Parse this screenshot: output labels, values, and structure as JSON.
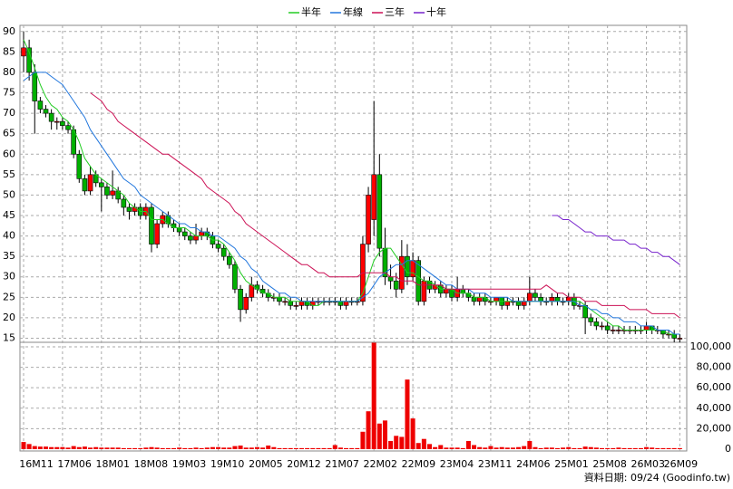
{
  "chart_data": {
    "type": "candlestick",
    "categories": [
      "16M11",
      null,
      null,
      null,
      null,
      null,
      null,
      "17M06",
      null,
      null,
      null,
      null,
      null,
      null,
      "18M01",
      null,
      null,
      null,
      null,
      null,
      null,
      "18M08",
      null,
      null,
      null,
      null,
      null,
      null,
      "19M03",
      null,
      null,
      null,
      null,
      null,
      null,
      "19M10",
      null,
      null,
      null,
      null,
      null,
      null,
      "20M05",
      null,
      null,
      null,
      null,
      null,
      null,
      "20M12",
      null,
      null,
      null,
      null,
      null,
      null,
      "21M07",
      null,
      null,
      null,
      null,
      null,
      null,
      "22M02",
      null,
      null,
      null,
      null,
      null,
      null,
      "22M09",
      null,
      null,
      null,
      null,
      null,
      null,
      "23M04",
      null,
      null,
      null,
      null,
      null,
      null,
      "23M11",
      null,
      null,
      null,
      null,
      null,
      null,
      "24M06",
      null,
      null,
      null,
      null,
      null,
      null,
      "25M01",
      null,
      null,
      null,
      null,
      null,
      null,
      "25M08",
      null,
      null,
      null,
      null,
      null,
      null,
      "26M03",
      null,
      null,
      null,
      null,
      null,
      "26M09"
    ],
    "ohlc": [
      [
        84,
        90,
        80,
        86
      ],
      [
        86,
        88,
        78,
        80
      ],
      [
        80,
        82,
        65,
        73
      ],
      [
        73,
        74,
        70,
        71
      ],
      [
        71,
        72,
        69,
        70
      ],
      [
        70,
        71,
        66,
        68
      ],
      [
        68,
        69,
        66,
        68
      ],
      [
        68,
        69,
        66,
        67
      ],
      [
        67,
        68,
        65,
        66
      ],
      [
        66,
        67,
        59,
        60
      ],
      [
        60,
        61,
        53,
        54
      ],
      [
        54,
        55,
        50,
        51
      ],
      [
        51,
        57,
        50,
        55
      ],
      [
        55,
        56,
        52,
        53
      ],
      [
        53,
        54,
        46,
        52
      ],
      [
        52,
        53,
        49,
        50
      ],
      [
        50,
        56,
        49,
        51
      ],
      [
        51,
        52,
        48,
        49
      ],
      [
        49,
        50,
        45,
        47
      ],
      [
        47,
        48,
        44,
        46
      ],
      [
        46,
        48,
        45,
        47
      ],
      [
        47,
        48,
        44,
        45
      ],
      [
        45,
        48,
        44,
        47
      ],
      [
        47,
        48,
        36,
        38
      ],
      [
        38,
        44,
        37,
        43
      ],
      [
        43,
        46,
        42,
        45
      ],
      [
        45,
        46,
        42,
        43
      ],
      [
        43,
        44,
        41,
        42
      ],
      [
        42,
        43,
        40,
        41
      ],
      [
        41,
        42,
        39,
        40
      ],
      [
        40,
        41,
        38,
        39
      ],
      [
        39,
        43,
        38,
        40
      ],
      [
        40,
        42,
        39,
        41
      ],
      [
        41,
        42,
        39,
        40
      ],
      [
        40,
        41,
        37,
        38
      ],
      [
        38,
        39,
        36,
        37
      ],
      [
        37,
        38,
        34,
        35
      ],
      [
        35,
        36,
        32,
        33
      ],
      [
        33,
        34,
        26,
        27
      ],
      [
        27,
        28,
        19,
        22
      ],
      [
        22,
        26,
        21,
        25
      ],
      [
        25,
        30,
        24,
        28
      ],
      [
        28,
        29,
        26,
        27
      ],
      [
        27,
        28,
        25,
        26
      ],
      [
        26,
        27,
        24,
        25
      ],
      [
        25,
        26,
        24,
        25
      ],
      [
        25,
        26,
        23,
        24
      ],
      [
        24,
        25,
        23,
        24
      ],
      [
        24,
        25,
        22,
        23
      ],
      [
        23,
        24,
        22,
        23
      ],
      [
        23,
        25,
        22,
        24
      ],
      [
        24,
        25,
        22,
        23
      ],
      [
        23,
        25,
        22,
        24
      ],
      [
        24,
        25,
        23,
        24
      ],
      [
        24,
        25,
        23,
        24
      ],
      [
        24,
        25,
        23,
        24
      ],
      [
        24,
        25,
        23,
        24
      ],
      [
        24,
        25,
        22,
        23
      ],
      [
        23,
        25,
        22,
        24
      ],
      [
        24,
        25,
        23,
        24
      ],
      [
        24,
        25,
        23,
        24
      ],
      [
        24,
        40,
        23,
        38
      ],
      [
        38,
        52,
        36,
        50
      ],
      [
        44,
        73,
        40,
        55
      ],
      [
        55,
        60,
        35,
        37
      ],
      [
        37,
        42,
        28,
        30
      ],
      [
        30,
        33,
        27,
        29
      ],
      [
        29,
        31,
        25,
        27
      ],
      [
        27,
        39,
        26,
        35
      ],
      [
        35,
        38,
        28,
        30
      ],
      [
        30,
        36,
        29,
        34
      ],
      [
        34,
        35,
        23,
        24
      ],
      [
        24,
        30,
        23,
        29
      ],
      [
        29,
        30,
        26,
        27
      ],
      [
        27,
        29,
        26,
        28
      ],
      [
        28,
        29,
        25,
        26
      ],
      [
        26,
        28,
        25,
        27
      ],
      [
        27,
        28,
        24,
        25
      ],
      [
        25,
        30,
        24,
        27
      ],
      [
        27,
        28,
        25,
        26
      ],
      [
        26,
        27,
        24,
        25
      ],
      [
        25,
        26,
        23,
        24
      ],
      [
        24,
        26,
        23,
        25
      ],
      [
        25,
        26,
        23,
        24
      ],
      [
        24,
        25,
        23,
        24
      ],
      [
        24,
        25,
        23,
        25
      ],
      [
        25,
        25,
        22,
        23
      ],
      [
        23,
        25,
        22,
        24
      ],
      [
        24,
        25,
        23,
        24
      ],
      [
        24,
        25,
        22,
        23
      ],
      [
        23,
        25,
        22,
        24
      ],
      [
        24,
        30,
        23,
        26
      ],
      [
        26,
        27,
        24,
        25
      ],
      [
        25,
        26,
        23,
        24
      ],
      [
        24,
        25,
        23,
        24
      ],
      [
        24,
        26,
        23,
        25
      ],
      [
        25,
        26,
        23,
        24
      ],
      [
        24,
        25,
        23,
        24
      ],
      [
        24,
        26,
        23,
        25
      ],
      [
        25,
        26,
        22,
        23
      ],
      [
        23,
        24,
        22,
        23
      ],
      [
        23,
        24,
        16,
        20
      ],
      [
        20,
        21,
        18,
        19
      ],
      [
        19,
        20,
        17,
        18
      ],
      [
        18,
        19,
        17,
        18
      ],
      [
        18,
        19,
        16,
        17
      ],
      [
        17,
        18,
        16,
        17
      ],
      [
        17,
        18,
        16,
        17
      ],
      [
        17,
        18,
        16,
        17
      ],
      [
        17,
        18,
        16,
        17
      ],
      [
        17,
        18,
        16,
        17
      ],
      [
        17,
        18,
        16,
        17
      ],
      [
        17,
        19,
        16,
        18
      ],
      [
        18,
        18,
        16,
        17
      ],
      [
        17,
        18,
        16,
        17
      ],
      [
        17,
        17,
        15,
        16
      ],
      [
        16,
        17,
        15,
        16
      ],
      [
        16,
        17,
        14,
        15
      ],
      [
        15,
        16,
        14,
        15
      ]
    ],
    "up_color": "#ff0000",
    "down_color": "#00b000",
    "series": [
      {
        "name": "半年",
        "color": "#22cc22",
        "values": [
          88,
          85,
          81,
          77,
          74,
          72,
          71,
          69,
          68,
          66,
          63,
          59,
          57,
          55,
          54,
          53,
          52,
          51,
          50,
          48,
          47,
          46,
          46,
          44,
          44,
          44,
          43,
          42,
          42,
          42,
          41,
          40,
          40,
          40,
          39,
          39,
          38,
          36,
          34,
          31,
          29,
          28,
          27,
          26,
          26,
          25,
          25,
          25,
          24,
          24,
          24,
          24,
          23,
          23,
          24,
          24,
          24,
          24,
          24,
          24,
          24,
          26,
          30,
          34,
          36,
          37,
          37,
          35,
          33,
          31,
          31,
          30,
          29,
          29,
          28,
          27,
          27,
          27,
          26,
          26,
          26,
          25,
          25,
          25,
          24,
          24,
          24,
          24,
          24,
          24,
          24,
          24,
          24,
          24,
          24,
          24,
          24,
          24,
          24,
          24,
          24,
          23,
          22,
          21,
          20,
          19,
          18,
          18,
          17,
          17,
          17,
          17,
          17,
          17,
          17,
          17,
          16,
          16,
          16
        ]
      },
      {
        "name": "年線",
        "color": "#2277dd",
        "values": [
          78,
          79,
          80,
          80,
          80,
          79,
          78,
          77,
          75,
          73,
          71,
          69,
          66,
          64,
          62,
          60,
          58,
          56,
          54,
          53,
          52,
          50,
          49,
          48,
          47,
          46,
          45,
          44,
          43,
          43,
          42,
          42,
          41,
          41,
          40,
          40,
          39,
          38,
          37,
          35,
          34,
          32,
          31,
          29,
          28,
          27,
          26,
          26,
          25,
          25,
          24,
          24,
          24,
          24,
          24,
          24,
          24,
          24,
          24,
          24,
          24,
          25,
          26,
          28,
          30,
          31,
          32,
          33,
          33,
          34,
          34,
          33,
          32,
          31,
          30,
          29,
          28,
          28,
          27,
          27,
          27,
          26,
          26,
          26,
          25,
          25,
          25,
          25,
          24,
          24,
          24,
          24,
          24,
          24,
          24,
          24,
          24,
          24,
          24,
          24,
          23,
          23,
          22,
          22,
          21,
          21,
          20,
          20,
          19,
          19,
          19,
          18,
          18,
          18,
          17,
          17,
          17,
          16,
          16
        ]
      },
      {
        "name": "三年",
        "color": "#cc1155",
        "values": [
          null,
          null,
          null,
          null,
          null,
          null,
          null,
          null,
          null,
          null,
          null,
          null,
          75,
          74,
          73,
          71,
          70,
          68,
          67,
          66,
          65,
          64,
          63,
          62,
          61,
          60,
          60,
          59,
          58,
          57,
          56,
          55,
          54,
          52,
          51,
          50,
          49,
          48,
          46,
          45,
          43,
          42,
          41,
          40,
          39,
          38,
          37,
          36,
          35,
          34,
          33,
          33,
          32,
          31,
          31,
          30,
          30,
          30,
          30,
          30,
          30,
          31,
          31,
          31,
          31,
          31,
          30,
          30,
          29,
          29,
          29,
          28,
          28,
          28,
          28,
          28,
          27,
          27,
          27,
          27,
          27,
          27,
          27,
          27,
          27,
          27,
          27,
          27,
          27,
          27,
          27,
          27,
          27,
          27,
          28,
          27,
          26,
          26,
          25,
          25,
          25,
          24,
          24,
          24,
          23,
          23,
          23,
          23,
          23,
          22,
          22,
          22,
          22,
          21,
          21,
          21,
          21,
          21,
          20
        ]
      },
      {
        "name": "十年",
        "color": "#7722cc",
        "values": [
          null,
          null,
          null,
          null,
          null,
          null,
          null,
          null,
          null,
          null,
          null,
          null,
          null,
          null,
          null,
          null,
          null,
          null,
          null,
          null,
          null,
          null,
          null,
          null,
          null,
          null,
          null,
          null,
          null,
          null,
          null,
          null,
          null,
          null,
          null,
          null,
          null,
          null,
          null,
          null,
          null,
          null,
          null,
          null,
          null,
          null,
          null,
          null,
          null,
          null,
          null,
          null,
          null,
          null,
          null,
          null,
          null,
          null,
          null,
          null,
          null,
          null,
          null,
          null,
          null,
          null,
          null,
          null,
          null,
          null,
          null,
          null,
          null,
          null,
          null,
          null,
          null,
          null,
          null,
          null,
          null,
          null,
          null,
          null,
          null,
          null,
          null,
          null,
          null,
          null,
          null,
          null,
          null,
          null,
          null,
          45,
          45,
          44,
          44,
          43,
          42,
          41,
          41,
          40,
          40,
          40,
          39,
          39,
          39,
          38,
          38,
          37,
          37,
          36,
          36,
          35,
          35,
          34,
          33
        ]
      }
    ],
    "ylim": [
      14,
      91.5
    ],
    "yticks": [
      15,
      20,
      25,
      30,
      35,
      40,
      45,
      50,
      55,
      60,
      65,
      70,
      75,
      80,
      85,
      90
    ],
    "grid": true,
    "volume": {
      "type": "bar",
      "color": "#ee0000",
      "values": [
        7000,
        5000,
        3000,
        2500,
        2500,
        2000,
        2000,
        2000,
        1500,
        3000,
        2000,
        2500,
        1500,
        2000,
        1500,
        1500,
        1500,
        1500,
        1000,
        1000,
        1000,
        1000,
        1500,
        2000,
        1500,
        1000,
        1000,
        1000,
        1500,
        1000,
        1000,
        1500,
        1000,
        1500,
        2000,
        2000,
        1500,
        1500,
        3000,
        3500,
        1500,
        1500,
        2000,
        1500,
        3500,
        2000,
        1000,
        1000,
        1000,
        1000,
        1000,
        1000,
        1000,
        1000,
        1000,
        1000,
        4000,
        1500,
        1000,
        1000,
        1000,
        17000,
        37000,
        104000,
        25000,
        28000,
        8000,
        13000,
        12000,
        68000,
        30000,
        6000,
        10000,
        5000,
        2000,
        4000,
        1500,
        1500,
        1500,
        1000,
        8000,
        4000,
        2000,
        1500,
        3000,
        1500,
        2000,
        1500,
        1500,
        2000,
        3000,
        8000,
        2000,
        1000,
        1500,
        1500,
        1000,
        1500,
        2000,
        1000,
        1000,
        2500,
        2000,
        1500,
        1000,
        1000,
        1000,
        1500,
        1000,
        1000,
        1000,
        1000,
        2000,
        1500,
        1000,
        1000,
        1000,
        1000,
        1000
      ],
      "ylim": [
        0,
        104400
      ],
      "yticks": [
        0,
        {
          "value": 20000,
          "label": "20,000"
        },
        {
          "value": 40000,
          "label": "40,000"
        },
        {
          "value": 60000,
          "label": "60,000"
        },
        {
          "value": 80000,
          "label": "80,000"
        },
        {
          "value": 100000,
          "label": "100,000"
        }
      ]
    },
    "source": "資料日期: 09/24 (Goodinfo.tw)"
  }
}
